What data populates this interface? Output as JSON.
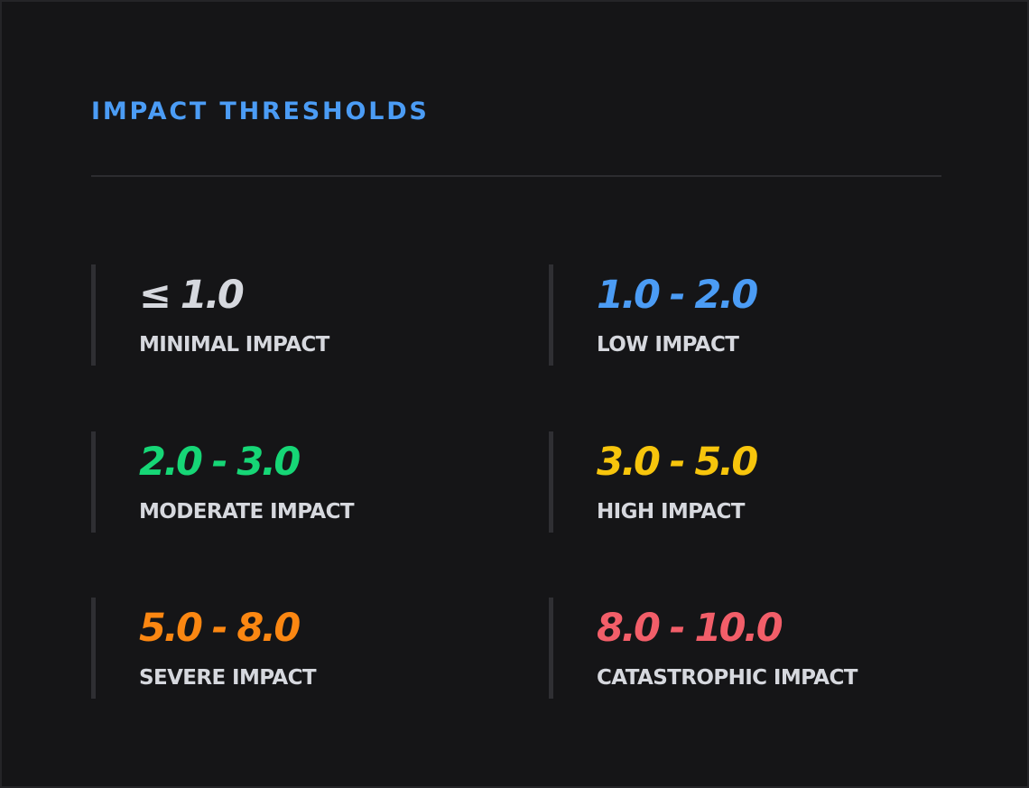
{
  "panel": {
    "title": "IMPACT THRESHOLDS"
  },
  "thresholds": [
    {
      "range": "≤ 1.0",
      "label": "MINIMAL IMPACT",
      "color": "#d6d8de"
    },
    {
      "range": "1.0 - 2.0",
      "label": "LOW IMPACT",
      "color": "#4b9cf5"
    },
    {
      "range": "2.0 - 3.0",
      "label": "MODERATE IMPACT",
      "color": "#16d676"
    },
    {
      "range": "3.0 - 5.0",
      "label": "HIGH IMPACT",
      "color": "#f7c50c"
    },
    {
      "range": "5.0 - 8.0",
      "label": "SEVERE IMPACT",
      "color": "#fb8712"
    },
    {
      "range": "8.0 - 10.0",
      "label": "CATASTROPHIC IMPACT",
      "color": "#f25e69"
    }
  ],
  "theme": {
    "background": "#151517",
    "accent": "#4b9cf5",
    "label_text": "#d6d8de"
  }
}
